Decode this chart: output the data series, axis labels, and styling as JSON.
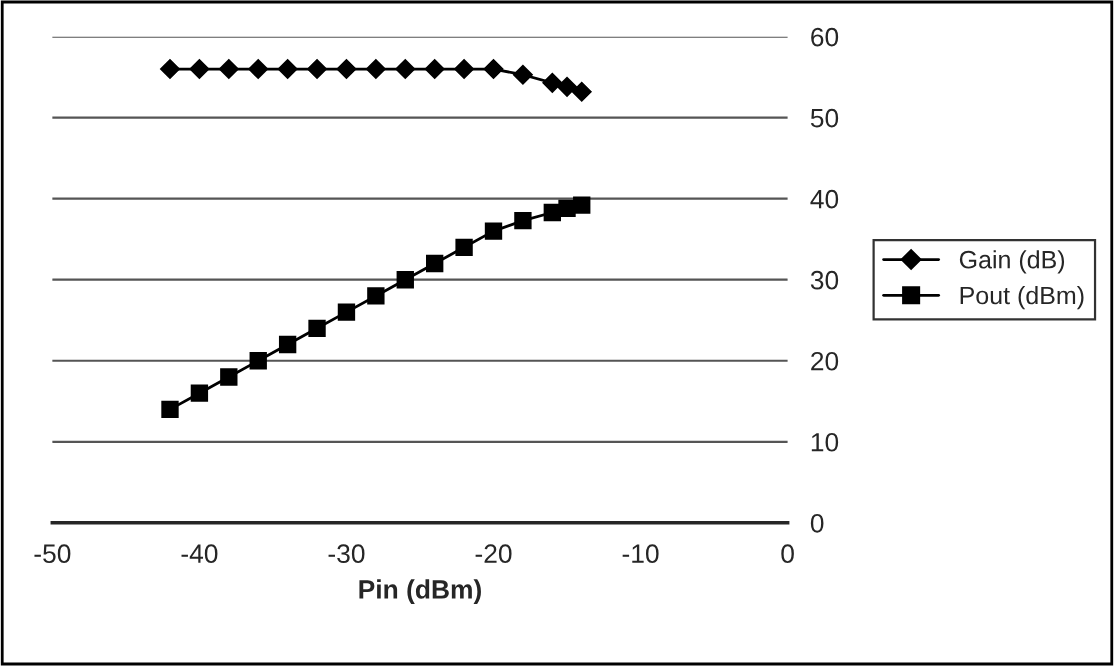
{
  "chart_data": {
    "type": "line",
    "xlabel": "Pin (dBm)",
    "x": [
      -42,
      -40,
      -38,
      -36,
      -34,
      -32,
      -30,
      -28,
      -26,
      -24,
      -22,
      -20,
      -18,
      -16,
      -15,
      -14
    ],
    "series": [
      {
        "name": "Gain (dB)",
        "color": "#000000",
        "marker": "diamond",
        "values": [
          56,
          56,
          56,
          56,
          56,
          56,
          56,
          56,
          56,
          56,
          56,
          56,
          55.3,
          54.3,
          53.8,
          53.2
        ]
      },
      {
        "name": "Pout (dBm)",
        "color": "#000000",
        "marker": "square",
        "values": [
          14,
          16,
          18,
          20,
          22,
          24,
          26,
          28,
          30,
          32,
          34,
          36,
          37.3,
          38.3,
          38.8,
          39.2
        ]
      }
    ],
    "xlim": [
      -50,
      0
    ],
    "xticks": [
      -50,
      -40,
      -30,
      -20,
      -10,
      0
    ],
    "ylim": [
      0,
      60
    ],
    "yticks": [
      0,
      10,
      20,
      30,
      40,
      50,
      60
    ],
    "grid": "y",
    "legend": "right",
    "line_style": "solid"
  }
}
